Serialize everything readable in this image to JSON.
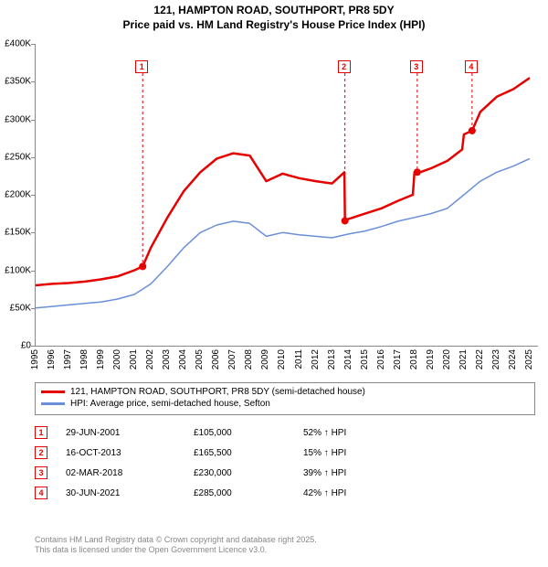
{
  "title_line1": "121, HAMPTON ROAD, SOUTHPORT, PR8 5DY",
  "title_line2": "Price paid vs. HM Land Registry's House Price Index (HPI)",
  "chart": {
    "type": "line",
    "background_color": "#ffffff",
    "grid_color": "#888888",
    "x_years": [
      1995,
      1996,
      1997,
      1998,
      1999,
      2000,
      2001,
      2002,
      2003,
      2004,
      2005,
      2006,
      2007,
      2008,
      2009,
      2010,
      2011,
      2012,
      2013,
      2014,
      2015,
      2016,
      2017,
      2018,
      2019,
      2020,
      2021,
      2022,
      2023,
      2024,
      2025
    ],
    "xlim": [
      1995,
      2025.5
    ],
    "ylim": [
      0,
      400
    ],
    "ytick_step": 50,
    "ytick_labels": [
      "£0",
      "£50K",
      "£100K",
      "£150K",
      "£200K",
      "£250K",
      "£300K",
      "£350K",
      "£400K"
    ],
    "series": [
      {
        "name": "121, HAMPTON ROAD, SOUTHPORT, PR8 5DY (semi-detached house)",
        "color": "#e60000",
        "line_width": 2.5,
        "points": [
          [
            1995,
            80
          ],
          [
            1996,
            82
          ],
          [
            1997,
            83
          ],
          [
            1998,
            85
          ],
          [
            1999,
            88
          ],
          [
            2000,
            92
          ],
          [
            2001,
            100
          ],
          [
            2001.5,
            105
          ],
          [
            2002,
            130
          ],
          [
            2003,
            170
          ],
          [
            2004,
            205
          ],
          [
            2005,
            230
          ],
          [
            2006,
            248
          ],
          [
            2007,
            255
          ],
          [
            2008,
            252
          ],
          [
            2009,
            218
          ],
          [
            2010,
            228
          ],
          [
            2011,
            222
          ],
          [
            2012,
            218
          ],
          [
            2013,
            215
          ],
          [
            2013.75,
            230
          ],
          [
            2013.78,
            165.5
          ],
          [
            2014,
            168
          ],
          [
            2015,
            175
          ],
          [
            2016,
            182
          ],
          [
            2017,
            192
          ],
          [
            2017.9,
            200
          ],
          [
            2018,
            230
          ],
          [
            2018.1,
            228
          ],
          [
            2019,
            235
          ],
          [
            2020,
            245
          ],
          [
            2020.9,
            260
          ],
          [
            2021,
            280
          ],
          [
            2021.5,
            285
          ],
          [
            2022,
            310
          ],
          [
            2023,
            330
          ],
          [
            2024,
            340
          ],
          [
            2025,
            355
          ]
        ],
        "markers": [
          {
            "x": 2001.5,
            "y": 105
          },
          {
            "x": 2013.78,
            "y": 165.5
          },
          {
            "x": 2018.17,
            "y": 230
          },
          {
            "x": 2021.5,
            "y": 285
          }
        ]
      },
      {
        "name": "HPI: Average price, semi-detached house, Sefton",
        "color": "#6a8fd8",
        "line_width": 1.5,
        "points": [
          [
            1995,
            50
          ],
          [
            1996,
            52
          ],
          [
            1997,
            54
          ],
          [
            1998,
            56
          ],
          [
            1999,
            58
          ],
          [
            2000,
            62
          ],
          [
            2001,
            68
          ],
          [
            2002,
            82
          ],
          [
            2003,
            105
          ],
          [
            2004,
            130
          ],
          [
            2005,
            150
          ],
          [
            2006,
            160
          ],
          [
            2007,
            165
          ],
          [
            2008,
            162
          ],
          [
            2009,
            145
          ],
          [
            2010,
            150
          ],
          [
            2011,
            147
          ],
          [
            2012,
            145
          ],
          [
            2013,
            143
          ],
          [
            2014,
            148
          ],
          [
            2015,
            152
          ],
          [
            2016,
            158
          ],
          [
            2017,
            165
          ],
          [
            2018,
            170
          ],
          [
            2019,
            175
          ],
          [
            2020,
            182
          ],
          [
            2021,
            200
          ],
          [
            2022,
            218
          ],
          [
            2023,
            230
          ],
          [
            2024,
            238
          ],
          [
            2025,
            248
          ]
        ]
      }
    ],
    "annotations": [
      {
        "n": "1",
        "x": 2001.5,
        "y_top": 18
      },
      {
        "n": "2",
        "x": 2013.78,
        "y_top": 18
      },
      {
        "n": "3",
        "x": 2018.17,
        "y_top": 18
      },
      {
        "n": "4",
        "x": 2021.5,
        "y_top": 18
      }
    ]
  },
  "legend": {
    "items": [
      {
        "color": "#e60000",
        "label": "121, HAMPTON ROAD, SOUTHPORT, PR8 5DY (semi-detached house)"
      },
      {
        "color": "#6a8fd8",
        "label": "HPI: Average price, semi-detached house, Sefton"
      }
    ]
  },
  "transactions": [
    {
      "n": "1",
      "date": "29-JUN-2001",
      "price": "£105,000",
      "delta": "52% ↑ HPI"
    },
    {
      "n": "2",
      "date": "16-OCT-2013",
      "price": "£165,500",
      "delta": "15% ↑ HPI"
    },
    {
      "n": "3",
      "date": "02-MAR-2018",
      "price": "£230,000",
      "delta": "39% ↑ HPI"
    },
    {
      "n": "4",
      "date": "30-JUN-2021",
      "price": "£285,000",
      "delta": "42% ↑ HPI"
    }
  ],
  "footer_line1": "Contains HM Land Registry data © Crown copyright and database right 2025.",
  "footer_line2": "This data is licensed under the Open Government Licence v3.0."
}
